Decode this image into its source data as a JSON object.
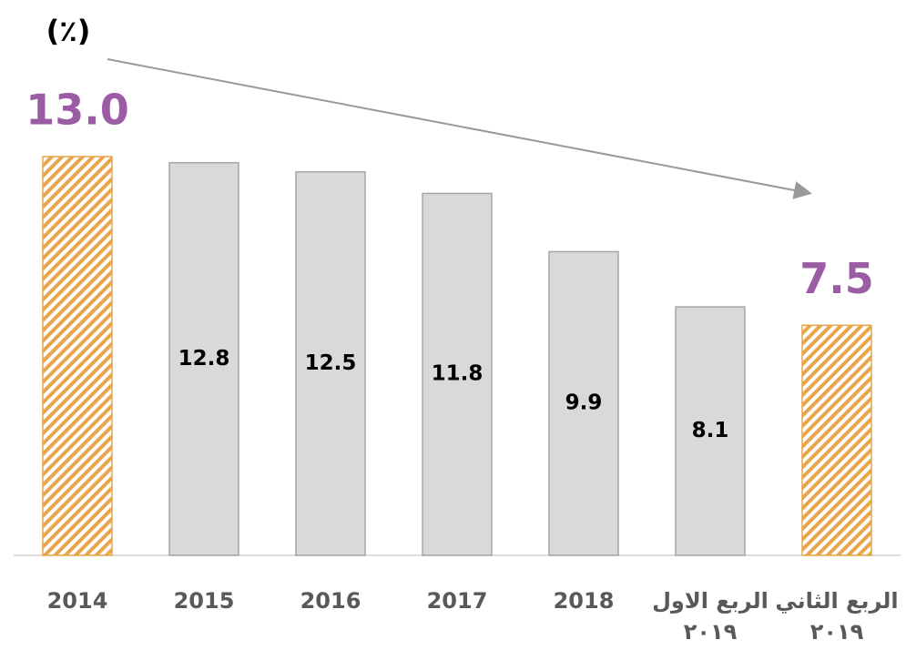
{
  "chart_data": {
    "type": "bar",
    "unit": "(٪)",
    "categories": [
      "2014",
      "2015",
      "2016",
      "2017",
      "2018",
      "الربع الاول\n٢٠١٩",
      "الربع الثاني\n٢٠١٩"
    ],
    "values": [
      13.0,
      12.8,
      12.5,
      11.8,
      9.9,
      8.1,
      7.5
    ],
    "value_labels": [
      "13.0",
      "12.8",
      "12.5",
      "11.8",
      "9.9",
      "8.1",
      "7.5"
    ],
    "highlight": [
      true,
      false,
      false,
      false,
      false,
      false,
      true
    ],
    "color": "#d9d9d9",
    "highlight_label_color": "#9b5ba5",
    "ylim": [
      0,
      13
    ]
  }
}
